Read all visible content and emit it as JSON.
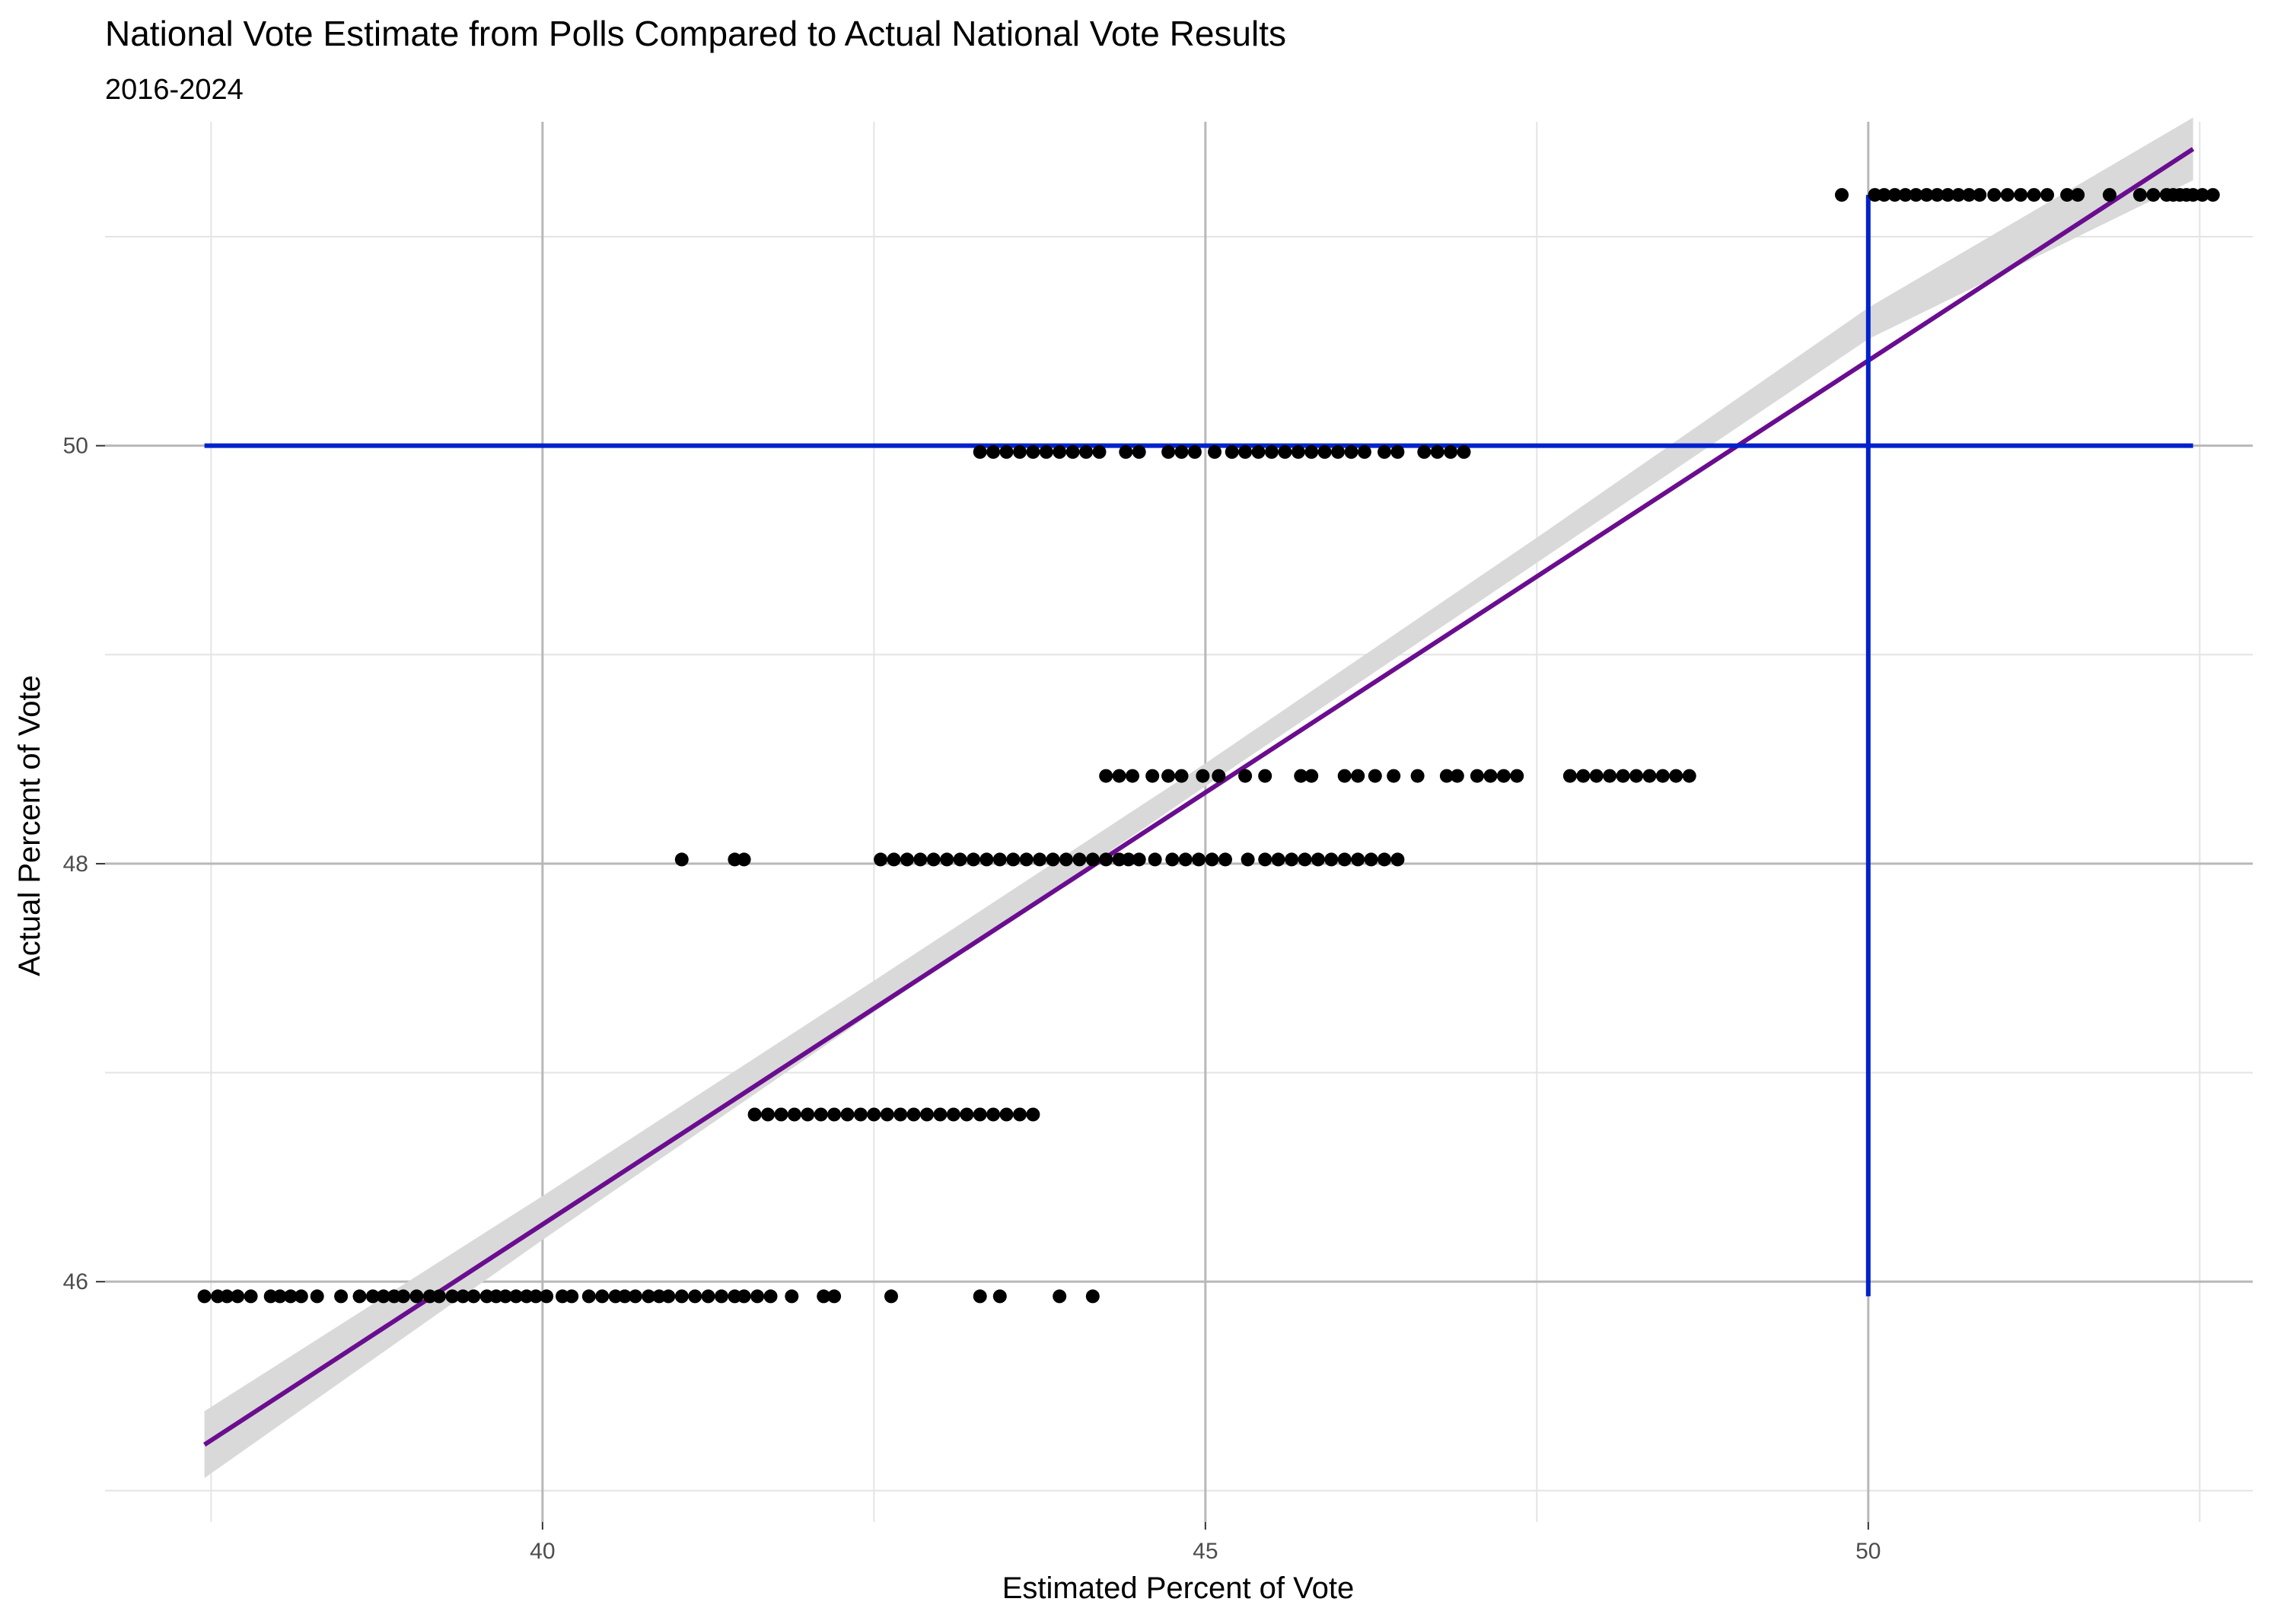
{
  "chart_data": {
    "type": "scatter",
    "title": "National Vote Estimate from Polls Compared to Actual National Vote Results",
    "subtitle": "2016-2024",
    "xlabel": "Estimated Percent of Vote",
    "ylabel": "Actual Percent of Vote",
    "xlim": [
      36.7,
      52.9
    ],
    "ylim": [
      44.85,
      51.55
    ],
    "x_ticks": [
      40,
      45,
      50
    ],
    "y_ticks": [
      46,
      48,
      50
    ],
    "x_minor_grid": [
      37.5,
      42.5,
      47.5,
      52.5
    ],
    "y_minor_grid": [
      45,
      47,
      49,
      51
    ],
    "grid": true,
    "legend": "none",
    "colors": {
      "points": "#000000",
      "fit_line": "#6a0d8f",
      "confidence_band": "#d9d9d9",
      "reference_lines": "#0022cc",
      "grid_major": "#b8b8b8",
      "grid_minor": "#e4e4e4"
    },
    "fit_line": {
      "x": [
        37.45,
        52.45
      ],
      "y": [
        45.22,
        51.42
      ]
    },
    "confidence_band": {
      "x": [
        37.45,
        40.0,
        42.5,
        45.0,
        47.5,
        50.0,
        52.45
      ],
      "lower": [
        45.06,
        46.2,
        47.29,
        48.37,
        49.44,
        50.51,
        51.27
      ],
      "upper": [
        45.38,
        46.41,
        47.44,
        48.48,
        49.56,
        50.66,
        51.57
      ]
    },
    "reference_lines": [
      {
        "orientation": "horizontal",
        "y": 50.0,
        "x_from": 37.45,
        "x_to": 52.45
      },
      {
        "orientation": "vertical",
        "x": 50.0,
        "y_from": 45.93,
        "y_to": 51.2
      }
    ],
    "series": [
      {
        "y": 45.93,
        "x": [
          37.45,
          37.55,
          37.62,
          37.7,
          37.8,
          37.95,
          38.02,
          38.1,
          38.18,
          38.3,
          38.48,
          38.62,
          38.72,
          38.8,
          38.88,
          38.95,
          39.05,
          39.15,
          39.22,
          39.32,
          39.4,
          39.48,
          39.58,
          39.65,
          39.72,
          39.8,
          39.88,
          39.95,
          40.03,
          40.15,
          40.22,
          40.35,
          40.45,
          40.55,
          40.62,
          40.7,
          40.8,
          40.88,
          40.95,
          41.05,
          41.15,
          41.25,
          41.35,
          41.45,
          41.52,
          41.62,
          41.72,
          41.88,
          42.12,
          42.2,
          42.63,
          43.3,
          43.45,
          43.9,
          44.15
        ]
      },
      {
        "y": 46.8,
        "x": [
          41.6,
          41.7,
          41.8,
          41.9,
          42.0,
          42.1,
          42.2,
          42.3,
          42.4,
          42.5,
          42.6,
          42.7,
          42.8,
          42.9,
          43.0,
          43.1,
          43.2,
          43.3,
          43.4,
          43.5,
          43.6,
          43.7
        ]
      },
      {
        "y": 48.02,
        "x": [
          41.05,
          41.45,
          41.52,
          42.55,
          42.65,
          42.75,
          42.85,
          42.95,
          43.05,
          43.15,
          43.25,
          43.35,
          43.45,
          43.55,
          43.65,
          43.75,
          43.85,
          43.95,
          44.05,
          44.15,
          44.25,
          44.35,
          44.42,
          44.5,
          44.62,
          44.75,
          44.85,
          44.95,
          45.05,
          45.15,
          45.32,
          45.45,
          45.55,
          45.65,
          45.75,
          45.85,
          45.95,
          46.05,
          46.15,
          46.25,
          46.35,
          46.45
        ]
      },
      {
        "y": 48.42,
        "x": [
          44.25,
          44.35,
          44.45,
          44.6,
          44.72,
          44.82,
          44.98,
          45.1,
          45.3,
          45.45,
          45.72,
          45.8,
          46.05,
          46.15,
          46.28,
          46.42,
          46.6,
          46.82,
          46.9,
          47.05,
          47.15,
          47.25,
          47.35,
          47.75,
          47.85,
          47.95,
          48.05,
          48.15,
          48.25,
          48.35,
          48.45,
          48.55,
          48.65
        ]
      },
      {
        "y": 49.97,
        "x": [
          43.3,
          43.4,
          43.5,
          43.6,
          43.7,
          43.8,
          43.9,
          44.0,
          44.1,
          44.2,
          44.4,
          44.5,
          44.72,
          44.82,
          44.92,
          45.07,
          45.2,
          45.3,
          45.4,
          45.5,
          45.6,
          45.7,
          45.8,
          45.9,
          46.0,
          46.1,
          46.2,
          46.35,
          46.45,
          46.65,
          46.75,
          46.85,
          46.95
        ]
      },
      {
        "y": 51.2,
        "x": [
          49.8,
          50.05,
          50.12,
          50.2,
          50.28,
          50.36,
          50.44,
          50.52,
          50.6,
          50.68,
          50.76,
          50.84,
          50.95,
          51.05,
          51.15,
          51.25,
          51.35,
          51.5,
          51.58,
          51.82,
          52.05,
          52.15,
          52.25,
          52.3,
          52.35,
          52.4,
          52.45,
          52.52,
          52.6
        ]
      }
    ]
  }
}
